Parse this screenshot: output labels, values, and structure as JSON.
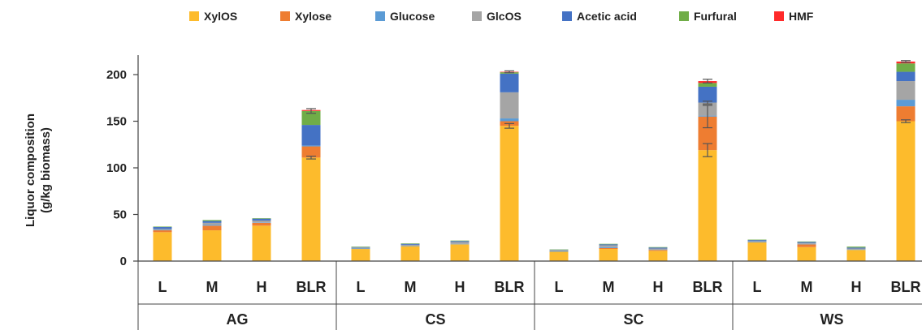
{
  "chart_data": {
    "type": "bar",
    "stacked": true,
    "ylabel": [
      "Liquor composition",
      "(g/kg biomass)"
    ],
    "xlabel": "",
    "ylim": [
      0,
      215
    ],
    "yticks": [
      0,
      50,
      100,
      150,
      200
    ],
    "grid": false,
    "legend_position": "top",
    "groups": [
      "AG",
      "CS",
      "SC",
      "WS"
    ],
    "subcategories": [
      "L",
      "M",
      "H",
      "BLR"
    ],
    "series": [
      {
        "name": "XylOS",
        "color": "#FDBB2C",
        "values": [
          31,
          33,
          38,
          111,
          13,
          16,
          18,
          145,
          10,
          13,
          11,
          119,
          20,
          15,
          12,
          150
        ]
      },
      {
        "name": "Xylose",
        "color": "#EE7D31",
        "values": [
          2,
          5,
          3,
          12,
          0,
          0,
          0,
          5,
          0,
          1,
          1,
          36,
          0,
          3,
          0,
          16
        ]
      },
      {
        "name": "Glucose",
        "color": "#5B9BD5",
        "values": [
          0.5,
          1,
          0.5,
          1,
          0.5,
          0.5,
          0.5,
          3,
          0.5,
          1,
          0.5,
          1,
          0.5,
          0.5,
          0.5,
          7
        ]
      },
      {
        "name": "GlcOS",
        "color": "#A5A5A5",
        "values": [
          1,
          2,
          2,
          0,
          1,
          1,
          2,
          28,
          1,
          2,
          1,
          14,
          1,
          1,
          1,
          20
        ]
      },
      {
        "name": "Acetic acid",
        "color": "#4472C4",
        "values": [
          2,
          2,
          2,
          22,
          0.5,
          1,
          1,
          20,
          0.5,
          1,
          1,
          17,
          1,
          1,
          1,
          10
        ]
      },
      {
        "name": "Furfural",
        "color": "#70AD47",
        "values": [
          0.5,
          1,
          0.5,
          15,
          0.5,
          0.5,
          0.5,
          1.5,
          0.5,
          0.5,
          0.5,
          4,
          0.5,
          0.5,
          1,
          9
        ]
      },
      {
        "name": "HMF",
        "color": "#FF2A2A",
        "values": [
          0,
          0,
          0,
          1,
          0,
          0,
          0,
          0.5,
          0,
          0,
          0,
          2,
          0,
          0,
          0,
          2
        ]
      }
    ],
    "error_bars": [
      {
        "subcategory_index": 3,
        "series": "XylOS",
        "value": 111,
        "err": 1.5
      },
      {
        "subcategory_index": 7,
        "series": "XylOS",
        "value": 145,
        "err": 2.5
      },
      {
        "subcategory_index": 11,
        "series": "XylOS",
        "value": 119,
        "err": 7
      },
      {
        "subcategory_index": 11,
        "series": "Xylose",
        "value": 155,
        "err": 12
      },
      {
        "subcategory_index": 11,
        "series": "GlcOS",
        "value": 170,
        "err": 1.5
      },
      {
        "subcategory_index": 11,
        "series": "HMF",
        "value": 193,
        "err": 2
      },
      {
        "subcategory_index": 3,
        "series": "HMF",
        "value": 161,
        "err": 2.5
      },
      {
        "subcategory_index": 7,
        "series": "HMF",
        "value": 203,
        "err": 1
      },
      {
        "subcategory_index": 15,
        "series": "XylOS",
        "value": 150,
        "err": 1.5
      },
      {
        "subcategory_index": 15,
        "series": "HMF",
        "value": 214,
        "err": 1
      }
    ]
  }
}
